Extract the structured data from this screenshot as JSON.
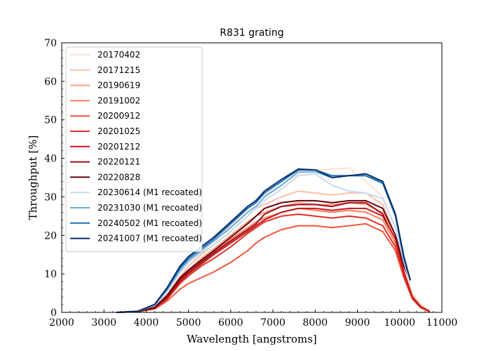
{
  "chart_data": {
    "type": "line",
    "title": "R831 grating",
    "xlabel": "Wavelength [angstroms]",
    "ylabel": "Throughput [%]",
    "xlim": [
      2000,
      11000
    ],
    "ylim": [
      0,
      70
    ],
    "xticks": [
      "2000",
      "3000",
      "4000",
      "5000",
      "6000",
      "7000",
      "8000",
      "9000",
      "10000",
      "11000"
    ],
    "yticks": [
      "0",
      "10",
      "20",
      "30",
      "40",
      "50",
      "60",
      "70"
    ],
    "legend_position": "top-left",
    "grid": false,
    "series": [
      {
        "name": "20170402",
        "color": "#fde0d2",
        "x": [
          3300,
          3800,
          4200,
          4500,
          4800,
          5000,
          5300,
          5600,
          6000,
          6400,
          6600,
          6800,
          7200,
          7600,
          8000,
          8400,
          8800,
          9200,
          9600,
          9900,
          10100,
          10300,
          10500,
          10700
        ],
        "y": [
          0,
          0.3,
          1.5,
          5,
          10,
          13,
          16,
          19,
          22.5,
          27,
          29.5,
          30.5,
          33,
          36,
          37,
          37.2,
          37.5,
          34,
          30,
          22,
          12,
          5,
          2,
          0.5
        ]
      },
      {
        "name": "20171215",
        "color": "#fcbfa7",
        "x": [
          3300,
          3800,
          4200,
          4500,
          4800,
          5000,
          5300,
          5600,
          6000,
          6400,
          6600,
          6800,
          7200,
          7600,
          8000,
          8400,
          8800,
          9200,
          9600,
          9900,
          10100,
          10300,
          10500,
          10700
        ],
        "y": [
          0,
          0.3,
          1.4,
          4.5,
          9,
          12,
          15,
          17.5,
          21,
          25,
          27,
          28,
          30,
          31.5,
          31,
          30.5,
          31,
          31,
          28,
          20,
          11,
          4.5,
          1.8,
          0.4
        ]
      },
      {
        "name": "20190619",
        "color": "#fc9f81",
        "x": [
          3300,
          3800,
          4200,
          4500,
          4800,
          5000,
          5300,
          5600,
          6000,
          6400,
          6600,
          6800,
          7200,
          7600,
          8000,
          8400,
          8800,
          9200,
          9600,
          9900,
          10100,
          10300,
          10500,
          10700
        ],
        "y": [
          0,
          0.3,
          1.3,
          4.2,
          8.5,
          11,
          14,
          16.5,
          20,
          23.5,
          25,
          26,
          27.5,
          28.5,
          28,
          28,
          28.5,
          28,
          26,
          19,
          10.5,
          4.2,
          1.6,
          0.4
        ]
      },
      {
        "name": "20191002",
        "color": "#fb7d5d",
        "x": [
          3300,
          3800,
          4200,
          4500,
          4800,
          5000,
          5300,
          5600,
          6000,
          6400,
          6600,
          6800,
          7200,
          7600,
          8000,
          8400,
          8800,
          9200,
          9600,
          9900,
          10100,
          10300,
          10500,
          10700
        ],
        "y": [
          0,
          0.3,
          1.2,
          4,
          8,
          10.5,
          13,
          15.5,
          19,
          22,
          23.5,
          24.5,
          26,
          27,
          26.5,
          26,
          26.5,
          26,
          24,
          18,
          10,
          4,
          1.5,
          0.3
        ]
      },
      {
        "name": "20200912",
        "color": "#f5553c",
        "x": [
          3300,
          3800,
          4200,
          4500,
          4800,
          5000,
          5300,
          5600,
          6000,
          6400,
          6600,
          6800,
          7200,
          7600,
          8000,
          8400,
          8800,
          9200,
          9600,
          9900,
          10100,
          10300,
          10500,
          10700
        ],
        "y": [
          0,
          0.2,
          0.9,
          3,
          6,
          7.5,
          9,
          10.5,
          13,
          16,
          18,
          19.5,
          21.5,
          22.5,
          22.5,
          22,
          22.5,
          23,
          21,
          16,
          9,
          3.5,
          1.2,
          0.2
        ]
      },
      {
        "name": "20201025",
        "color": "#e32f27",
        "x": [
          3300,
          3800,
          4200,
          4500,
          4800,
          5000,
          5300,
          5600,
          6000,
          6400,
          6600,
          6800,
          7200,
          7600,
          8000,
          8400,
          8800,
          9200,
          9600,
          9900,
          10100,
          10300,
          10500,
          10700
        ],
        "y": [
          0,
          0.2,
          1,
          3.5,
          7.5,
          9.5,
          12,
          14,
          17,
          20.5,
          22,
          23.5,
          25,
          25.5,
          25,
          24.5,
          25,
          24.5,
          22.5,
          17,
          9.5,
          3.8,
          1.3,
          0.3
        ]
      },
      {
        "name": "20201212",
        "color": "#c3161b",
        "x": [
          3300,
          3800,
          4200,
          4500,
          4800,
          5000,
          5300,
          5600,
          6000,
          6400,
          6600,
          6800,
          7200,
          7600,
          8000,
          8400,
          8800,
          9200,
          9600,
          9900,
          10100,
          10300,
          10500,
          10700
        ],
        "y": [
          0,
          0.2,
          1.1,
          3.8,
          8,
          10,
          12.5,
          15,
          18,
          21,
          22.5,
          24,
          26,
          27,
          27,
          26.5,
          27,
          27,
          25,
          19,
          10.5,
          4,
          1.4,
          0.3
        ]
      },
      {
        "name": "20220121",
        "color": "#9e0d14",
        "x": [
          3300,
          3800,
          4200,
          4500,
          4800,
          5000,
          5300,
          5600,
          6000,
          6400,
          6600,
          6800,
          7200,
          7600,
          8000,
          8400,
          8800,
          9200,
          9600,
          9700
        ],
        "y": [
          0,
          0.2,
          1.2,
          4,
          8.5,
          10.5,
          13,
          15.5,
          18.5,
          21.5,
          23,
          25.5,
          27.5,
          28,
          28,
          27.5,
          28.5,
          28.5,
          25.5,
          23
        ]
      },
      {
        "name": "20220828",
        "color": "#67000d",
        "x": [
          3300,
          3800,
          4200,
          4500,
          4800,
          5000,
          5300,
          5600,
          6000,
          6400,
          6600,
          6800,
          7200,
          7600,
          8000,
          8400,
          8800,
          9200,
          9600,
          9900,
          10100,
          10250
        ],
        "y": [
          0,
          0.2,
          1.3,
          4.5,
          9,
          11,
          13.5,
          16,
          19.5,
          23,
          25,
          27,
          28.5,
          29,
          29,
          28.5,
          29,
          29,
          27,
          20,
          12,
          8.5
        ]
      },
      {
        "name": "20230614 (M1 recoated)",
        "color": "#c6dbef",
        "x": [
          3300,
          3800,
          4200,
          4500,
          4800,
          5000,
          5300,
          5600,
          6000,
          6400,
          6600,
          6800,
          7200,
          7600,
          8000,
          8400,
          8800,
          9200,
          9600,
          9900,
          10100,
          10250
        ],
        "y": [
          0,
          0.3,
          1.8,
          5.5,
          10.5,
          13,
          15.5,
          17.5,
          21,
          25,
          27,
          29,
          32,
          35.5,
          36,
          33,
          31.5,
          31,
          29.5,
          22,
          13,
          8
        ]
      },
      {
        "name": "20231030 (M1 recoated)",
        "color": "#6baed6",
        "x": [
          3300,
          3800,
          4200,
          4500,
          4800,
          5000,
          5300,
          5600,
          6000,
          6400,
          6600,
          6800,
          7200,
          7600,
          8000,
          8400,
          8800,
          9200,
          9600,
          9900,
          10100,
          10250
        ],
        "y": [
          0,
          0.3,
          1.9,
          6,
          11,
          13.5,
          16,
          18.5,
          22,
          26,
          27.5,
          30,
          33,
          36.5,
          36.5,
          35,
          35.5,
          35.5,
          34,
          25,
          14,
          8.5
        ]
      },
      {
        "name": "20240502 (M1 recoated)",
        "color": "#2171b5",
        "x": [
          3300,
          3800,
          4200,
          4500,
          4800,
          5000,
          5300,
          5600,
          6000,
          6400,
          6600,
          6800,
          7200,
          7600,
          8000,
          8400,
          8800,
          9200,
          9600,
          9900,
          10100,
          10250
        ],
        "y": [
          0,
          0.3,
          2,
          6.2,
          11.5,
          14,
          16.5,
          19,
          23,
          27,
          28.5,
          31,
          34,
          37,
          37,
          35.5,
          35.5,
          35.5,
          33.5,
          25,
          14,
          8.5
        ]
      },
      {
        "name": "20241007 (M1 recoated)",
        "color": "#08306b",
        "x": [
          3300,
          3800,
          4200,
          4500,
          4800,
          5000,
          5300,
          5600,
          6000,
          6400,
          6600,
          6800,
          7200,
          7600,
          8000,
          8400,
          8800,
          9200,
          9600,
          9900,
          10100,
          10250
        ],
        "y": [
          0,
          0.3,
          2.1,
          6.5,
          12,
          14.5,
          17,
          19.5,
          23.5,
          27.5,
          29,
          31.5,
          34.5,
          37.2,
          37,
          35,
          35.5,
          36,
          34,
          25.5,
          14.5,
          8.5
        ]
      }
    ]
  }
}
